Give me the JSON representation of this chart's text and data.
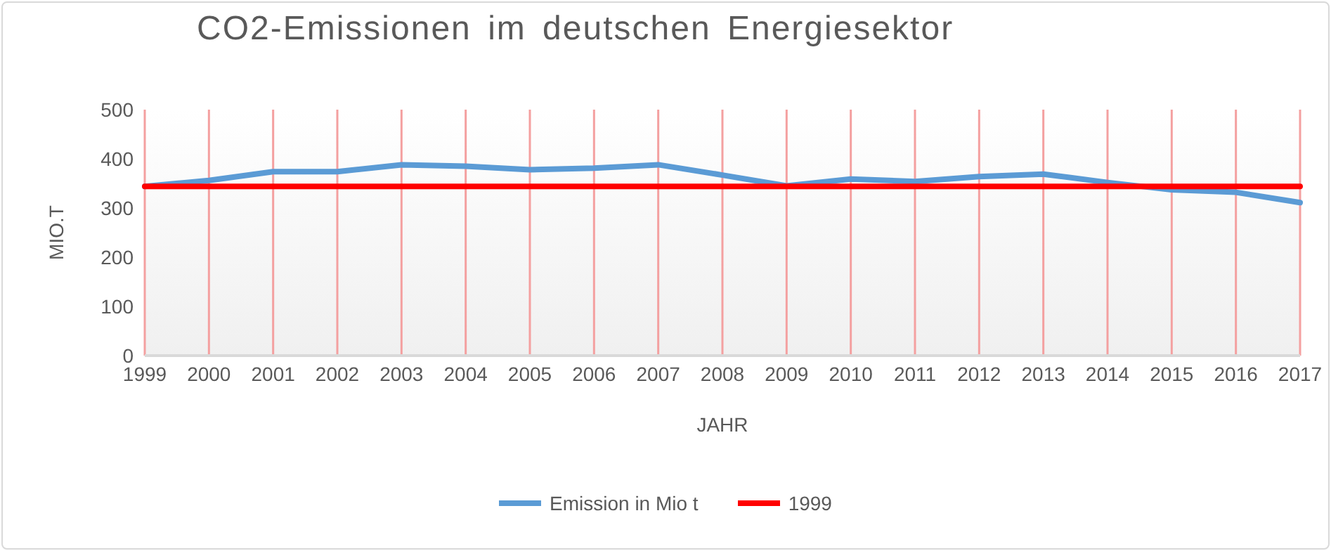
{
  "chart_data": {
    "type": "line",
    "title": "CO2-Emissionen im deutschen Energiesektor",
    "xlabel": "JAHR",
    "ylabel": "MIO.T",
    "categories": [
      "1999",
      "2000",
      "2001",
      "2002",
      "2003",
      "2004",
      "2005",
      "2006",
      "2007",
      "2008",
      "2009",
      "2010",
      "2011",
      "2012",
      "2013",
      "2014",
      "2015",
      "2016",
      "2017"
    ],
    "series": [
      {
        "name": "Emission in Mio t",
        "color": "#5b9bd5",
        "values": [
          344,
          356,
          374,
          374,
          388,
          385,
          378,
          381,
          388,
          367,
          345,
          359,
          354,
          364,
          369,
          352,
          337,
          332,
          311
        ]
      },
      {
        "name": "1999",
        "color": "#ff0000",
        "values": [
          344,
          344,
          344,
          344,
          344,
          344,
          344,
          344,
          344,
          344,
          344,
          344,
          344,
          344,
          344,
          344,
          344,
          344,
          344
        ]
      }
    ],
    "ylim": [
      0,
      500
    ],
    "yticks": [
      0,
      100,
      200,
      300,
      400,
      500
    ],
    "grid": "x",
    "legend": "bottom",
    "marker": "none",
    "line_style": "solid"
  }
}
